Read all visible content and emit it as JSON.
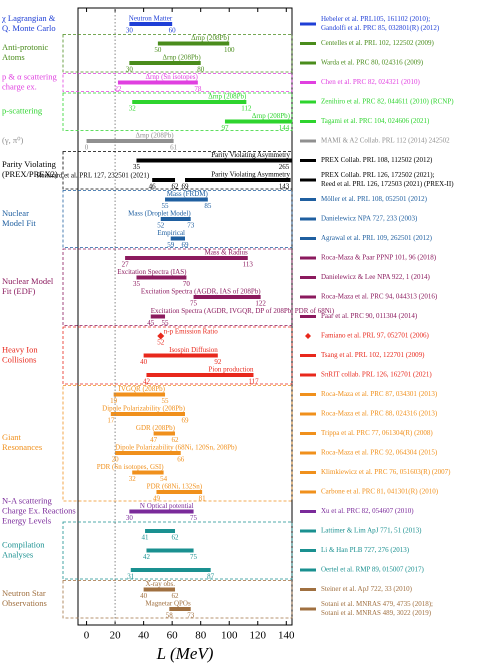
{
  "chart_data": {
    "type": "range",
    "xlabel": "L (MeV)",
    "xlim": [
      -6,
      144
    ],
    "xticks": [
      0,
      20,
      40,
      60,
      80,
      100,
      120,
      140
    ],
    "ref_line": 20,
    "groups": [
      {
        "label": [
          "χ Lagrangian &",
          "Q. Monte Carlo"
        ],
        "color": "#1f3fd6",
        "box": false,
        "rows": [
          {
            "bars": [
              {
                "low": 30,
                "high": 60,
                "label": "Neutron Matter"
              }
            ],
            "ref": [
              "Hebeler et al. PRL105, 161102 (2010);",
              "Gandolfi et al. PRC 85, 032801(R) (2012)"
            ]
          }
        ]
      },
      {
        "label": [
          "Anti-protonic",
          "Atoms"
        ],
        "color": "#4a8c1c",
        "box": true,
        "rows": [
          {
            "bars": [
              {
                "low": 50,
                "high": 100,
                "label": "Δrnp (208Pb)"
              }
            ],
            "ref": [
              "Centelles et al. PRL 102, 122502 (2009)"
            ]
          },
          {
            "bars": [
              {
                "low": 30,
                "high": 80,
                "label": "Δrnp (208Pb)"
              }
            ],
            "ref": [
              "Warda et al. PRC 80, 024316 (2009)"
            ]
          }
        ]
      },
      {
        "label": [
          "p & α scattering",
          "charge ex."
        ],
        "color": "#e040e0",
        "box": true,
        "rows": [
          {
            "bars": [
              {
                "low": 22,
                "high": 78,
                "label": "Δrnp (Sn isotopes)"
              }
            ],
            "ref": [
              "Chen et al. PRC 82, 024321 (2010)"
            ]
          }
        ]
      },
      {
        "label": [
          "p-scattering"
        ],
        "color": "#2ed42e",
        "box": true,
        "rows": [
          {
            "bars": [
              {
                "low": 32,
                "high": 112,
                "label": "Δrnp (208Pb)"
              }
            ],
            "ref": [
              "Zenihiro et al. PRC 82, 044611 (2010) (RCNP)"
            ]
          },
          {
            "bars": [
              {
                "low": 97,
                "high": 144,
                "label": "Δrnp (208Pb)"
              }
            ],
            "ref": [
              "Tagami et al. PRC 104, 024606 (2021)"
            ]
          }
        ]
      },
      {
        "label": [
          "(γ, π⁰)"
        ],
        "color": "#909090",
        "box": false,
        "rows": [
          {
            "bars": [
              {
                "low": 0,
                "high": 61,
                "label": "Δrnp (208Pb)"
              }
            ],
            "ref": [
              "MAMI & A2 Collab. PRL 112 (2014) 242502"
            ]
          }
        ]
      },
      {
        "label": [
          "Parity Violating",
          "(PREX/PREX2)"
        ],
        "color": "#000000",
        "box": true,
        "rows": [
          {
            "bars": [
              {
                "low": 35,
                "high": 265,
                "label": "Parity Violating Asymmetry"
              }
            ],
            "ref": [
              "PREX Collab. PRL 108, 112502 (2012)"
            ]
          },
          {
            "bars": [
              {
                "low": 46,
                "high": 62,
                "label": "Reinhard et al. PRL 127, 232501 (2021)"
              },
              {
                "low": 69,
                "high": 143,
                "label": "Parity Violating Asymmetry"
              }
            ],
            "ref": [
              "PREX Collab. PRL 126, 172502 (2021);",
              "Reed et al. PRL 126, 172503 (2021) (PREX-II)"
            ]
          }
        ]
      },
      {
        "label": [
          "Nuclear",
          "Model Fit"
        ],
        "color": "#1f5fa0",
        "box": true,
        "rows": [
          {
            "bars": [
              {
                "low": 55,
                "high": 85,
                "label": "Mass (FRDM)"
              }
            ],
            "ref": [
              "Möller et al. PRL 108, 052501 (2012)"
            ]
          },
          {
            "bars": [
              {
                "low": 52,
                "high": 73,
                "label": "Mass (Droplet Model)"
              }
            ],
            "ref": [
              "Danielewicz NPA 727, 233 (2003)"
            ]
          },
          {
            "bars": [
              {
                "low": 59,
                "high": 69,
                "label": "Empirical"
              }
            ],
            "ref": [
              "Agrawal et al. PRL 109, 262501 (2012)"
            ]
          }
        ]
      },
      {
        "label": [
          "Nuclear Model",
          "Fit (EDF)"
        ],
        "color": "#8b1a5e",
        "box": true,
        "rows": [
          {
            "bars": [
              {
                "low": 27,
                "high": 113,
                "label": "Mass & Radius"
              }
            ],
            "ref": [
              "Roca-Maza & Paar PPNP 101, 96 (2018)"
            ]
          },
          {
            "bars": [
              {
                "low": 35,
                "high": 70,
                "label": "Excitation Spectra (IAS)"
              }
            ],
            "ref": [
              "Danielewicz & Lee NPA 922, 1 (2014)"
            ]
          },
          {
            "bars": [
              {
                "low": 75,
                "high": 122,
                "label": "Excitation Spectra (AGDR, IAS of 208Pb)"
              }
            ],
            "ref": [
              "Roca-Maza et al. PRC 94, 044313 (2016)"
            ]
          },
          {
            "bars": [
              {
                "low": 45,
                "high": 55,
                "label": "Excitation Spectra (AGDR, IVGQR, DP of 208Pb, PDR of 68Ni)"
              }
            ],
            "ref": [
              "Paar et al. PRC 90, 011304 (2014)"
            ]
          }
        ]
      },
      {
        "label": [
          "Heavy Ion",
          "Collisions"
        ],
        "color": "#e8281c",
        "box": true,
        "rows": [
          {
            "bars": [
              {
                "value": 52,
                "label": "n-p Emission Ratio"
              }
            ],
            "ref": [
              "Famiano et al. PRL 97, 052701 (2006)"
            ]
          },
          {
            "bars": [
              {
                "low": 40,
                "high": 92,
                "label": "Isospin Diffusion"
              }
            ],
            "ref": [
              "Tsang et al. PRL 102, 122701 (2009)"
            ]
          },
          {
            "bars": [
              {
                "low": 42,
                "high": 117,
                "label": "Pion production"
              }
            ],
            "ref": [
              "SπRIT collab. PRL 126, 162701 (2021)"
            ]
          }
        ]
      },
      {
        "label": [
          "Giant",
          "Resonances"
        ],
        "color": "#f0901c",
        "box": true,
        "rows": [
          {
            "bars": [
              {
                "low": 19,
                "high": 55,
                "label": "IVGQR (208Pb)"
              }
            ],
            "ref": [
              "Roca-Maza et al. PRC 87, 034301 (2013)"
            ]
          },
          {
            "bars": [
              {
                "low": 17,
                "high": 69,
                "label": "Dipole Polarizability (208Pb)"
              }
            ],
            "ref": [
              "Roca-Maza et al. PRC 88, 024316 (2013)"
            ]
          },
          {
            "bars": [
              {
                "low": 47,
                "high": 62,
                "label": "GDR (208Pb)"
              }
            ],
            "ref": [
              "Trippa et al. PRC 77, 061304(R) (2008)"
            ]
          },
          {
            "bars": [
              {
                "low": 20,
                "high": 66,
                "label": "Dipole Polarizability (68Ni, 120Sn, 208Pb)"
              }
            ],
            "ref": [
              "Roca-Maza et al. PRC 92, 064304 (2015)"
            ]
          },
          {
            "bars": [
              {
                "low": 32,
                "high": 54,
                "label": "PDR (Sn isotopes, GSI)"
              }
            ],
            "ref": [
              "Klimkiewicz et al. PRC 76, 051603(R) (2007)"
            ]
          },
          {
            "bars": [
              {
                "low": 49,
                "high": 81,
                "label": "PDR (68Ni, 132Sn)"
              }
            ],
            "ref": [
              "Carbone et al. PRC 81, 041301(R) (2010)"
            ]
          }
        ]
      },
      {
        "label": [
          "N-A scattering",
          "Charge Ex. Reactions",
          "Energy Levels"
        ],
        "color": "#7a2a9a",
        "box": false,
        "rows": [
          {
            "bars": [
              {
                "low": 30,
                "high": 75,
                "label": "N Optical potential"
              }
            ],
            "ref": [
              "Xu et al. PRC 82, 054607 (2010)"
            ]
          }
        ]
      },
      {
        "label": [
          "Compilation",
          "Analyses"
        ],
        "color": "#1a9090",
        "box": true,
        "rows": [
          {
            "bars": [
              {
                "low": 41,
                "high": 62,
                "label": null
              }
            ],
            "ref": [
              "Lattimer & Lim ApJ 771, 51 (2013)"
            ]
          },
          {
            "bars": [
              {
                "low": 42,
                "high": 75,
                "label": null
              }
            ],
            "ref": [
              "Li & Han PLB 727, 276 (2013)"
            ]
          },
          {
            "bars": [
              {
                "low": 31,
                "high": 87,
                "label": null
              }
            ],
            "ref": [
              "Oertel et al. RMP 89, 015007 (2017)"
            ]
          }
        ]
      },
      {
        "label": [
          "Neutron Star",
          "Observations"
        ],
        "color": "#a07040",
        "box": true,
        "rows": [
          {
            "bars": [
              {
                "low": 40,
                "high": 62,
                "label": "X-ray obs."
              }
            ],
            "ref": [
              "Steiner et al. ApJ 722, 33 (2010)"
            ]
          },
          {
            "bars": [
              {
                "low": 58,
                "high": 73,
                "label": "Magnetar QPOs"
              }
            ],
            "ref": [
              "Sotani et al. MNRAS 479, 4735 (2018);",
              "Sotani et al. MNRAS 489, 3022 (2019)"
            ]
          }
        ]
      }
    ]
  }
}
